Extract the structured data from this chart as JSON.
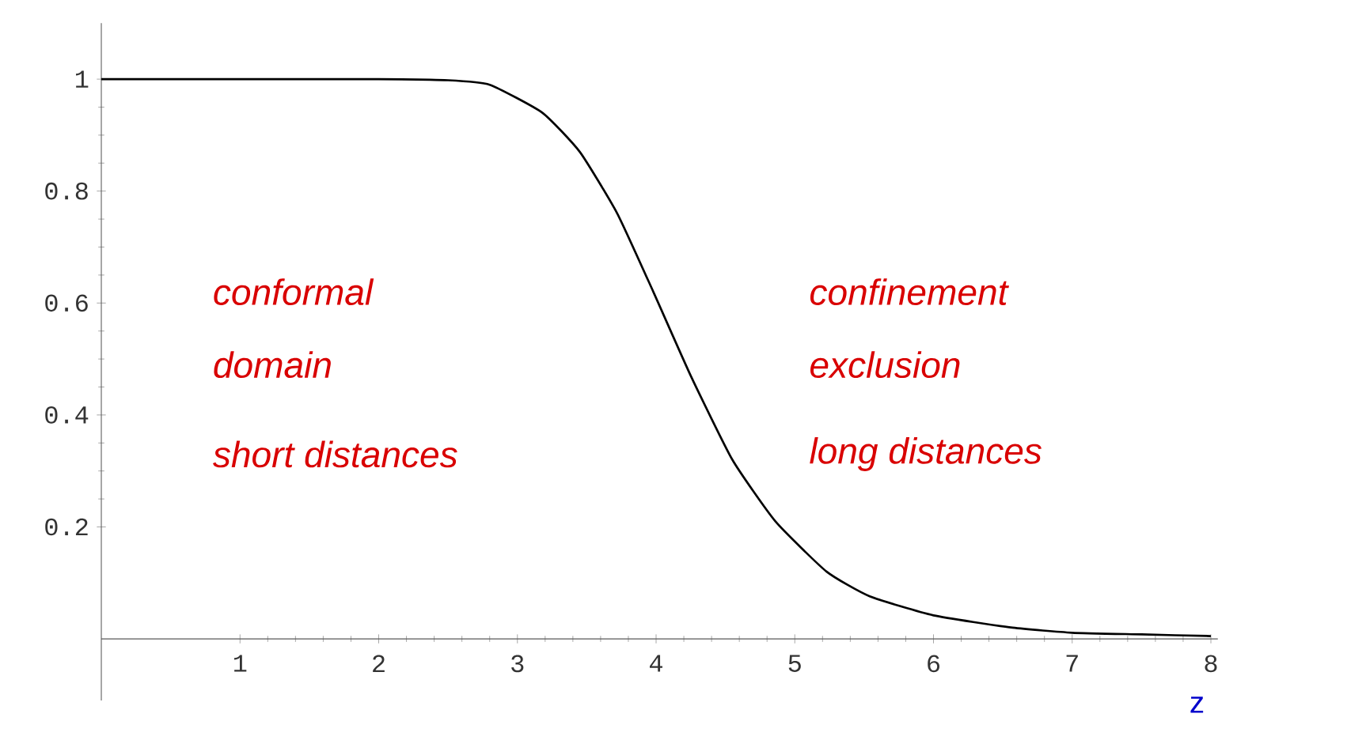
{
  "chart_data": {
    "type": "line",
    "xlabel": "z",
    "x": [
      0,
      1,
      2,
      2.5,
      2.8,
      3.18,
      3.45,
      3.72,
      3.98,
      4.25,
      4.55,
      4.86,
      5.23,
      5.54,
      6.0,
      6.57,
      7.0,
      7.5,
      8.0
    ],
    "series": [
      {
        "color": "#000000",
        "values": [
          1,
          1,
          1,
          0.998,
          0.99,
          0.94,
          0.87,
          0.76,
          0.62,
          0.47,
          0.32,
          0.21,
          0.12,
          0.076,
          0.042,
          0.02,
          0.011,
          0.008,
          0.005
        ]
      }
    ],
    "xlim": [
      0,
      8.05
    ],
    "ylim": [
      -0.11,
      1.1
    ],
    "xticks": [
      1,
      2,
      3,
      4,
      5,
      6,
      7,
      8
    ],
    "yticks": [
      0.2,
      0.4,
      0.6,
      0.8,
      1
    ],
    "annotations": [
      "conformal",
      "domain",
      "short distances",
      "confinement",
      "exclusion",
      "long distances"
    ],
    "marker": "none",
    "line_style": "solid"
  }
}
